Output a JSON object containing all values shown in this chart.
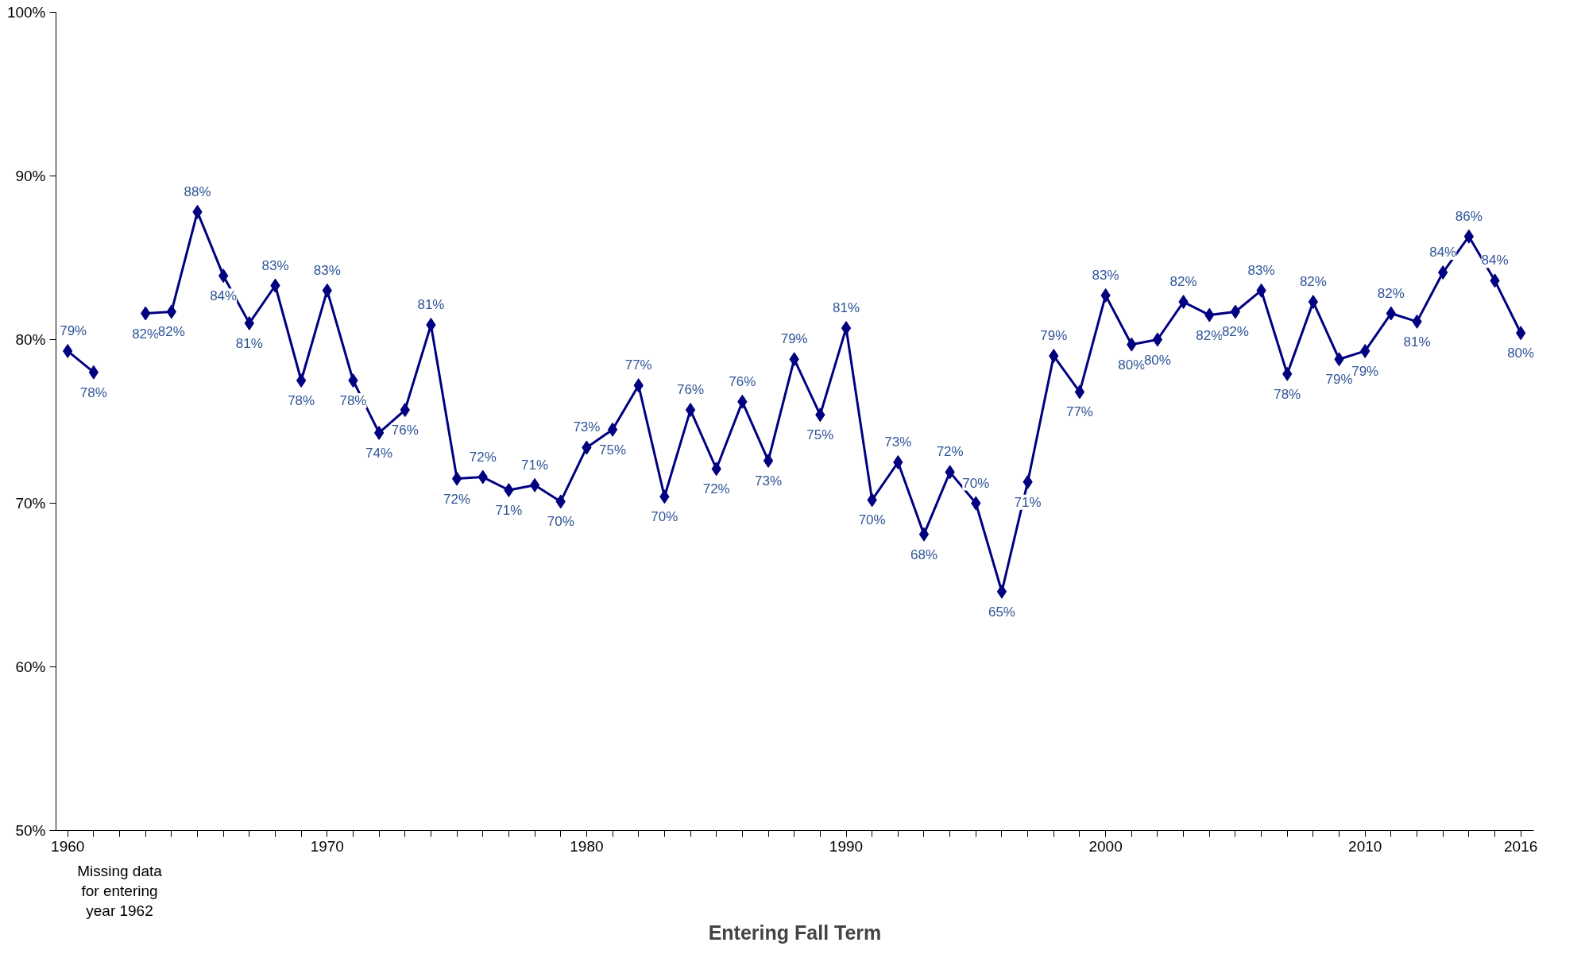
{
  "chart_data": {
    "type": "line",
    "xlabel": "Entering Fall Term",
    "x": [
      1960,
      1961,
      1962,
      1963,
      1964,
      1965,
      1966,
      1967,
      1968,
      1969,
      1970,
      1971,
      1972,
      1973,
      1974,
      1975,
      1976,
      1977,
      1978,
      1979,
      1980,
      1981,
      1982,
      1983,
      1984,
      1985,
      1986,
      1987,
      1988,
      1989,
      1990,
      1991,
      1992,
      1993,
      1994,
      1995,
      1996,
      1997,
      1998,
      1999,
      2000,
      2001,
      2002,
      2003,
      2004,
      2005,
      2006,
      2007,
      2008,
      2009,
      2010,
      2011,
      2012,
      2013,
      2014,
      2015,
      2016
    ],
    "series": [
      {
        "color": "#000080",
        "values": [
          79.3,
          78.0,
          null,
          81.6,
          81.7,
          87.8,
          83.9,
          81.0,
          83.3,
          77.5,
          83.0,
          77.5,
          74.3,
          75.7,
          80.9,
          71.5,
          71.6,
          70.8,
          71.1,
          70.1,
          73.4,
          74.5,
          77.2,
          70.4,
          75.7,
          72.1,
          76.2,
          72.6,
          78.8,
          75.4,
          80.7,
          70.2,
          72.5,
          68.1,
          71.9,
          70.0,
          64.6,
          71.3,
          79.0,
          76.8,
          82.7,
          79.7,
          80.0,
          82.3,
          81.5,
          81.7,
          83.0,
          77.9,
          82.3,
          78.8,
          79.3,
          81.6,
          81.1,
          84.1,
          86.3,
          83.6,
          80.4
        ],
        "value_labels": [
          "79%",
          "78%",
          null,
          "82%",
          "82%",
          "88%",
          "84%",
          "81%",
          "83%",
          "78%",
          "83%",
          "78%",
          "74%",
          "76%",
          "81%",
          "72%",
          "72%",
          "71%",
          "71%",
          "70%",
          "73%",
          "75%",
          "77%",
          "70%",
          "76%",
          "72%",
          "76%",
          "73%",
          "79%",
          "75%",
          "81%",
          "70%",
          "73%",
          "68%",
          "72%",
          "70%",
          "65%",
          "71%",
          "79%",
          "77%",
          "83%",
          "80%",
          "80%",
          "82%",
          "82%",
          "82%",
          "83%",
          "78%",
          "82%",
          "79%",
          "79%",
          "82%",
          "81%",
          "84%",
          "86%",
          "84%",
          "80%"
        ]
      }
    ],
    "marker": "diamond",
    "line_style": "solid",
    "grid": false,
    "xlim": [
      1959.55,
      2016.5
    ],
    "xticks": [
      1960,
      {
        "value": 1961,
        "label": null
      },
      {
        "value": 1962,
        "label": null
      },
      {
        "value": 1963,
        "label": null
      },
      {
        "value": 1964,
        "label": null
      },
      {
        "value": 1965,
        "label": null
      },
      {
        "value": 1966,
        "label": null
      },
      {
        "value": 1967,
        "label": null
      },
      {
        "value": 1968,
        "label": null
      },
      {
        "value": 1969,
        "label": null
      },
      1970,
      {
        "value": 1971,
        "label": null
      },
      {
        "value": 1972,
        "label": null
      },
      {
        "value": 1973,
        "label": null
      },
      {
        "value": 1974,
        "label": null
      },
      {
        "value": 1975,
        "label": null
      },
      {
        "value": 1976,
        "label": null
      },
      {
        "value": 1977,
        "label": null
      },
      {
        "value": 1978,
        "label": null
      },
      {
        "value": 1979,
        "label": null
      },
      1980,
      {
        "value": 1981,
        "label": null
      },
      {
        "value": 1982,
        "label": null
      },
      {
        "value": 1983,
        "label": null
      },
      {
        "value": 1984,
        "label": null
      },
      {
        "value": 1985,
        "label": null
      },
      {
        "value": 1986,
        "label": null
      },
      {
        "value": 1987,
        "label": null
      },
      {
        "value": 1988,
        "label": null
      },
      {
        "value": 1989,
        "label": null
      },
      1990,
      {
        "value": 1991,
        "label": null
      },
      {
        "value": 1992,
        "label": null
      },
      {
        "value": 1993,
        "label": null
      },
      {
        "value": 1994,
        "label": null
      },
      {
        "value": 1995,
        "label": null
      },
      {
        "value": 1996,
        "label": null
      },
      {
        "value": 1997,
        "label": null
      },
      {
        "value": 1998,
        "label": null
      },
      {
        "value": 1999,
        "label": null
      },
      2000,
      {
        "value": 2001,
        "label": null
      },
      {
        "value": 2002,
        "label": null
      },
      {
        "value": 2003,
        "label": null
      },
      {
        "value": 2004,
        "label": null
      },
      {
        "value": 2005,
        "label": null
      },
      {
        "value": 2006,
        "label": null
      },
      {
        "value": 2007,
        "label": null
      },
      {
        "value": 2008,
        "label": null
      },
      {
        "value": 2009,
        "label": null
      },
      2010,
      {
        "value": 2011,
        "label": null
      },
      {
        "value": 2012,
        "label": null
      },
      {
        "value": 2013,
        "label": null
      },
      {
        "value": 2014,
        "label": null
      },
      {
        "value": 2015,
        "label": null
      },
      2016
    ],
    "ylim": [
      50,
      100
    ],
    "yticks": [
      {
        "value": 50,
        "label": "50%"
      },
      {
        "value": 60,
        "label": "60%"
      },
      {
        "value": 70,
        "label": "70%"
      },
      {
        "value": 80,
        "label": "80%"
      },
      {
        "value": 90,
        "label": "90%"
      },
      {
        "value": 100,
        "label": "100%"
      }
    ],
    "annotations": [
      "Missing data\nfor entering\nyear 1962"
    ]
  }
}
